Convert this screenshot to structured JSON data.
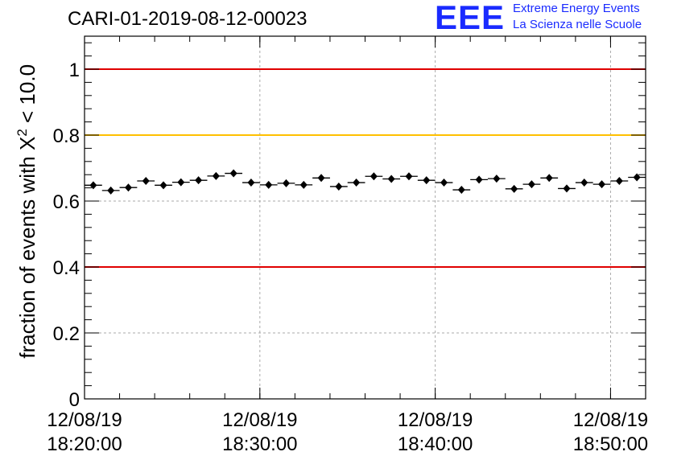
{
  "title": "CARI-01-2019-08-12-00023",
  "logo": {
    "mark": "EEE",
    "line1": "Extreme Energy Events",
    "line2": "La Scienza nelle Scuole"
  },
  "colors": {
    "red_line": "#e00000",
    "yellow_line": "#ffc000",
    "logo_blue": "#1a2bff",
    "grid": "#aaaaaa",
    "marker": "#000000"
  },
  "chart_data": {
    "type": "scatter",
    "title": "CARI-01-2019-08-12-00023",
    "ylabel": "fraction of events with X² < 10.0",
    "ylabel_parts": {
      "before": "fraction of events with X",
      "sup": "2",
      "after": " < 10.0"
    },
    "xlabel": "",
    "ylim": [
      0,
      1.1
    ],
    "xlim_minutes": [
      0,
      32
    ],
    "x_axis_note": "minutes after 2019-08-12 18:20:00",
    "yticks": [
      "0",
      "0.2",
      "0.4",
      "0.6",
      "0.8",
      "1"
    ],
    "ytick_values": [
      0,
      0.2,
      0.4,
      0.6,
      0.8,
      1.0
    ],
    "xticks": [
      {
        "minute": 0,
        "date": "12/08/19",
        "time": "18:20:00"
      },
      {
        "minute": 10,
        "date": "12/08/19",
        "time": "18:30:00"
      },
      {
        "minute": 20,
        "date": "12/08/19",
        "time": "18:40:00"
      },
      {
        "minute": 30,
        "date": "12/08/19",
        "time": "18:50:00"
      }
    ],
    "grid": true,
    "reference_lines": [
      {
        "y": 1.0,
        "color": "#e00000"
      },
      {
        "y": 0.8,
        "color": "#ffc000"
      },
      {
        "y": 0.4,
        "color": "#e00000"
      }
    ],
    "points": [
      {
        "x": 0.5,
        "y": 0.648
      },
      {
        "x": 1.5,
        "y": 0.632
      },
      {
        "x": 2.5,
        "y": 0.641
      },
      {
        "x": 3.5,
        "y": 0.661
      },
      {
        "x": 4.5,
        "y": 0.648
      },
      {
        "x": 5.5,
        "y": 0.657
      },
      {
        "x": 6.5,
        "y": 0.663
      },
      {
        "x": 7.5,
        "y": 0.676
      },
      {
        "x": 8.5,
        "y": 0.684
      },
      {
        "x": 9.5,
        "y": 0.656
      },
      {
        "x": 10.5,
        "y": 0.649
      },
      {
        "x": 11.5,
        "y": 0.654
      },
      {
        "x": 12.5,
        "y": 0.649
      },
      {
        "x": 13.5,
        "y": 0.67
      },
      {
        "x": 14.5,
        "y": 0.644
      },
      {
        "x": 15.5,
        "y": 0.656
      },
      {
        "x": 16.5,
        "y": 0.675
      },
      {
        "x": 17.5,
        "y": 0.667
      },
      {
        "x": 18.5,
        "y": 0.675
      },
      {
        "x": 19.5,
        "y": 0.663
      },
      {
        "x": 20.5,
        "y": 0.656
      },
      {
        "x": 21.5,
        "y": 0.634
      },
      {
        "x": 22.5,
        "y": 0.665
      },
      {
        "x": 23.5,
        "y": 0.668
      },
      {
        "x": 24.5,
        "y": 0.637
      },
      {
        "x": 25.5,
        "y": 0.651
      },
      {
        "x": 26.5,
        "y": 0.67
      },
      {
        "x": 27.5,
        "y": 0.638
      },
      {
        "x": 28.5,
        "y": 0.656
      },
      {
        "x": 29.5,
        "y": 0.651
      },
      {
        "x": 30.5,
        "y": 0.661
      },
      {
        "x": 31.5,
        "y": 0.672
      }
    ],
    "x_error_minutes": 0.5,
    "y_error": 0.006
  }
}
